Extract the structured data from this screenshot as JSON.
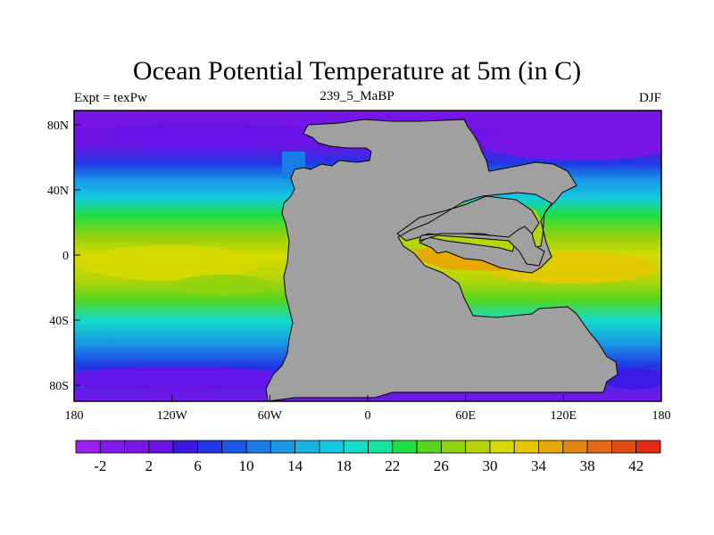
{
  "map": {
    "title": "Ocean Potential Temperature at 5m (in C)",
    "left_label": "Expt = texPw",
    "center_label": "239_5_MaBP",
    "right_label": "DJF",
    "x_ticks": [
      "180",
      "120W",
      "60W",
      "0",
      "60E",
      "120E",
      "180"
    ],
    "y_ticks": [
      "80N",
      "40N",
      "0",
      "40S",
      "80S"
    ],
    "land_color": "#a0a0a0"
  },
  "colorbar": {
    "labels": [
      "-2",
      "2",
      "6",
      "10",
      "14",
      "18",
      "22",
      "26",
      "30",
      "34",
      "38",
      "42"
    ],
    "colors": [
      "#9b1ff0",
      "#8318ee",
      "#7815e8",
      "#6a13e5",
      "#3c17e0",
      "#2136e6",
      "#1a58e8",
      "#1a7ae6",
      "#1898e5",
      "#17b4e2",
      "#15c9de",
      "#14dcc8",
      "#13e49e",
      "#20de45",
      "#57d51d",
      "#8fd20f",
      "#b7d408",
      "#d6da00",
      "#e5c900",
      "#e5a900",
      "#e48510",
      "#e26a14",
      "#e04c14",
      "#e12b12"
    ]
  }
}
